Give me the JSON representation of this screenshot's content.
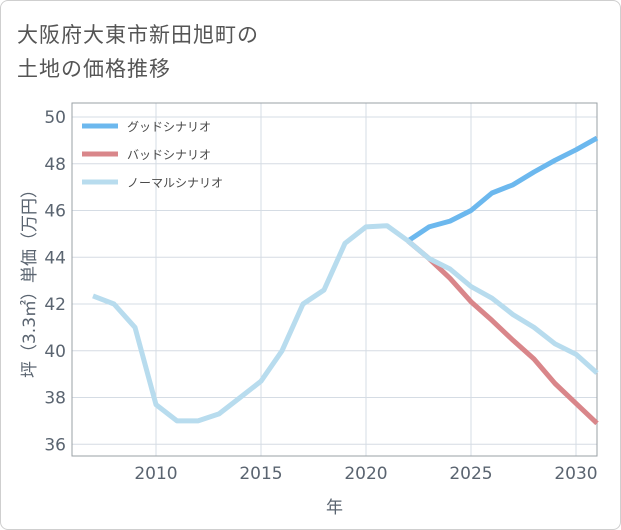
{
  "title_lines": [
    "大阪府大東市新田旭町の",
    "土地の価格推移"
  ],
  "chart_data": {
    "type": "line",
    "xlabel": "年",
    "ylabel": "坪（3.3㎡）単価（万円）",
    "xlim": [
      2006,
      2031
    ],
    "ylim": [
      35.5,
      50.6
    ],
    "xticks": [
      2010,
      2015,
      2020,
      2025,
      2030
    ],
    "yticks": [
      36,
      38,
      40,
      42,
      44,
      46,
      48,
      50
    ],
    "legend_position": "top-left",
    "grid": true,
    "series": [
      {
        "name": "グッドシナリオ",
        "color": "#6cb8ee",
        "x": [
          2022,
          2023,
          2024,
          2025,
          2026,
          2027,
          2028,
          2029,
          2030,
          2031
        ],
        "y": [
          44.7,
          45.3,
          45.55,
          46.0,
          46.75,
          47.1,
          47.65,
          48.15,
          48.6,
          49.1
        ]
      },
      {
        "name": "バッドシナリオ",
        "color": "#d9868a",
        "x": [
          2022,
          2023,
          2024,
          2025,
          2026,
          2027,
          2028,
          2029,
          2030,
          2031
        ],
        "y": [
          44.7,
          43.95,
          43.1,
          42.1,
          41.3,
          40.45,
          39.65,
          38.6,
          37.75,
          36.9
        ]
      },
      {
        "name": "ノーマルシナリオ",
        "color": "#b8dcee",
        "x": [
          2007,
          2008,
          2009,
          2010,
          2011,
          2012,
          2013,
          2014,
          2015,
          2016,
          2017,
          2018,
          2019,
          2020,
          2021,
          2022,
          2023,
          2024,
          2025,
          2026,
          2027,
          2028,
          2029,
          2030,
          2031
        ],
        "y": [
          42.35,
          42.0,
          41.0,
          37.7,
          37.0,
          37.0,
          37.3,
          38.0,
          38.7,
          40.0,
          42.0,
          42.6,
          44.6,
          45.3,
          45.35,
          44.7,
          43.95,
          43.5,
          42.75,
          42.25,
          41.55,
          41.0,
          40.3,
          39.85,
          39.05
        ]
      }
    ]
  }
}
